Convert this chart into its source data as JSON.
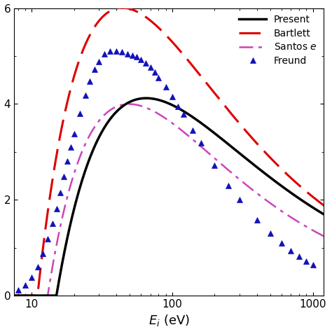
{
  "title": "",
  "xlabel": "$E_i$ (eV)",
  "ylabel": "",
  "xlim": [
    7.5,
    1200
  ],
  "ylim": [
    0,
    6
  ],
  "yticks": [
    0,
    2,
    4,
    6
  ],
  "legend_labels": [
    "Present",
    "Bartlett",
    "Santos $e$",
    "Freund"
  ],
  "present_color": "#000000",
  "bartlett_color": "#dd0000",
  "santos_color": "#cc44bb",
  "freund_color": "#1111bb",
  "present_lw": 2.5,
  "bartlett_lw": 2.2,
  "santos_lw": 1.8,
  "freund_markersize": 6,
  "freund_E": [
    8.0,
    9.0,
    10.0,
    11.0,
    12.0,
    13.0,
    14.0,
    15.0,
    16.0,
    17.0,
    18.0,
    19.0,
    20.0,
    22.0,
    24.0,
    26.0,
    28.0,
    30.0,
    33.0,
    36.0,
    40.0,
    44.0,
    48.0,
    52.0,
    56.0,
    60.0,
    65.0,
    70.0,
    75.0,
    80.0,
    90.0,
    100.0,
    110.0,
    120.0,
    140.0,
    160.0,
    200.0,
    250.0,
    300.0,
    400.0,
    500.0,
    600.0,
    700.0,
    800.0,
    900.0,
    1000.0
  ],
  "freund_y": [
    0.12,
    0.22,
    0.38,
    0.6,
    0.88,
    1.18,
    1.5,
    1.82,
    2.15,
    2.48,
    2.8,
    3.1,
    3.38,
    3.8,
    4.18,
    4.48,
    4.72,
    4.88,
    5.05,
    5.1,
    5.1,
    5.08,
    5.05,
    5.02,
    4.98,
    4.93,
    4.85,
    4.76,
    4.66,
    4.55,
    4.35,
    4.15,
    3.95,
    3.78,
    3.45,
    3.18,
    2.72,
    2.3,
    2.0,
    1.58,
    1.3,
    1.1,
    0.94,
    0.82,
    0.72,
    0.64
  ]
}
